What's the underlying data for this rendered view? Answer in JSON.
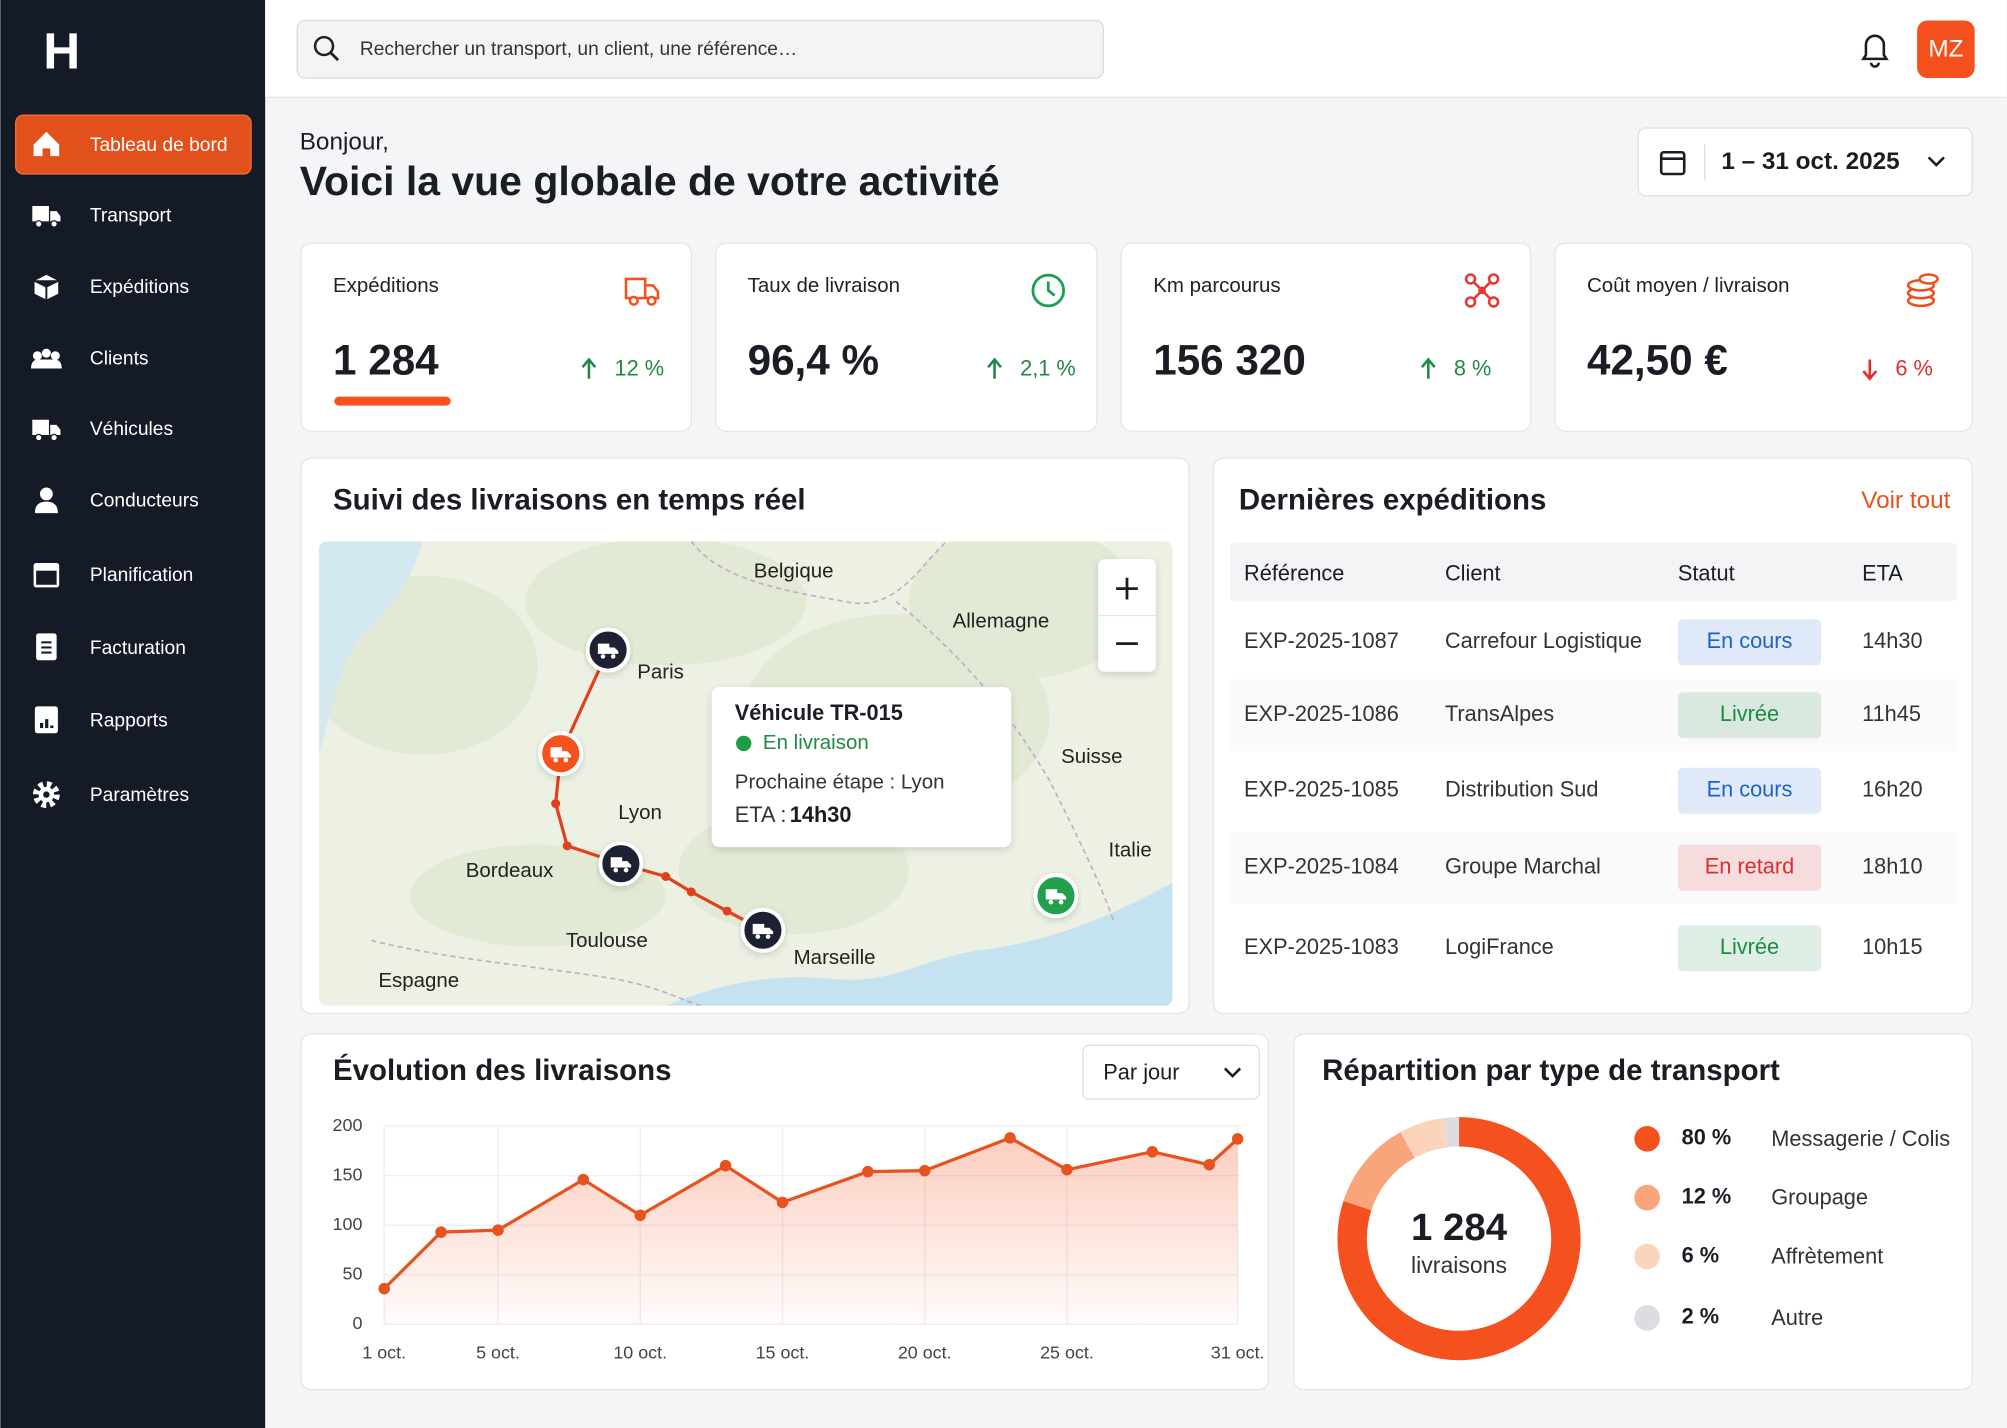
{
  "app": {
    "logo": "H",
    "nav": [
      "Tableau de bord",
      "Transport",
      "Expéditions",
      "Clients",
      "Véhicules",
      "Conducteurs",
      "Planification",
      "Facturation",
      "Rapports",
      "Paramètres"
    ],
    "active_nav": 0
  },
  "search": {
    "placeholder": "Rechercher un transport, un client, une référence…"
  },
  "user": {
    "initials": "MZ"
  },
  "greeting": "Bonjour,",
  "headline": "Voici la vue globale de votre activité",
  "date_range": "1 – 31 oct. 2025",
  "kpis": [
    {
      "label": "Expéditions",
      "value": "1 284",
      "change": "12 %",
      "trend": "up",
      "icon": "truck",
      "icon_color": "#f4511e",
      "accent_underline": true
    },
    {
      "label": "Taux de livraison",
      "value": "96,4 %",
      "change": "2,1 %",
      "trend": "up",
      "icon": "clock",
      "icon_color": "#1f9d55"
    },
    {
      "label": "Km parcourus",
      "value": "156 320",
      "change": "8 %",
      "trend": "up",
      "icon": "network",
      "icon_color": "#e53935"
    },
    {
      "label": "Coût moyen / livraison",
      "value": "42,50 €",
      "change": "6 %",
      "trend": "down",
      "icon": "coins",
      "icon_color": "#e8521e"
    }
  ],
  "map": {
    "title": "Suivi des livraisons en temps réel",
    "places": [
      "Belgique",
      "Allemagne",
      "Paris",
      "Suisse",
      "Lyon",
      "Italie",
      "Bordeaux",
      "Toulouse",
      "Marseille",
      "Espagne"
    ],
    "tooltip": {
      "vehicle": "Véhicule TR-015",
      "status": "En livraison",
      "next_stop": "Prochaine étape : Lyon",
      "eta_label": "ETA :",
      "eta": "14h30"
    }
  },
  "shipments": {
    "title": "Dernières expéditions",
    "link": "Voir tout",
    "columns": [
      "Référence",
      "Client",
      "Statut",
      "ETA"
    ],
    "rows": [
      {
        "reference": "EXP-2025-1087",
        "client": "Carrefour Logistique",
        "status": "En cours",
        "status_color": "#1d63c9",
        "eta": "14h30"
      },
      {
        "reference": "EXP-2025-1086",
        "client": "TransAlpes",
        "status": "Livrée",
        "status_color": "#1f8a45",
        "eta": "11h45"
      },
      {
        "reference": "EXP-2025-1085",
        "client": "Distribution Sud",
        "status": "En cours",
        "status_color": "#1d63c9",
        "eta": "16h20"
      },
      {
        "reference": "EXP-2025-1084",
        "client": "Groupe Marchal",
        "status": "En retard",
        "status_color": "#e02d2d",
        "eta": "18h10"
      },
      {
        "reference": "EXP-2025-1083",
        "client": "LogiFrance",
        "status": "Livrée",
        "status_color": "#1f8a45",
        "eta": "10h15"
      }
    ]
  },
  "chart_data": [
    {
      "type": "line",
      "title": "Évolution des livraisons",
      "period": "Par jour",
      "color": "#e8521e",
      "x": [
        1,
        3,
        5,
        8,
        10,
        13,
        15,
        18,
        20,
        23,
        25,
        28,
        30,
        31
      ],
      "values": [
        36,
        93,
        95,
        146,
        110,
        160,
        123,
        154,
        155,
        188,
        156,
        174,
        161,
        187
      ],
      "xlim": [
        1,
        31
      ],
      "xticks": [
        {
          "value": 1,
          "label": "1 oct."
        },
        {
          "value": 5,
          "label": "5 oct."
        },
        {
          "value": 10,
          "label": "10 oct."
        },
        {
          "value": 15,
          "label": "15 oct."
        },
        {
          "value": 20,
          "label": "20 oct."
        },
        {
          "value": 25,
          "label": "25 oct."
        },
        {
          "value": 31,
          "label": "31 oct."
        }
      ],
      "ylim": [
        0,
        200
      ],
      "yticks": [
        0,
        50,
        100,
        150,
        200
      ],
      "grid": true
    },
    {
      "type": "donut",
      "title": "Répartition par type de transport",
      "center_value": "1 284",
      "center_label": "livraisons",
      "categories": [
        "Messagerie / Colis",
        "Groupage",
        "Affrètement",
        "Autre"
      ],
      "values": [
        80,
        12,
        6,
        2
      ],
      "value_labels": [
        "80 %",
        "12 %",
        "6 %",
        "2 %"
      ],
      "colors": [
        "#f4511e",
        "#f9a47a",
        "#fcd3bb",
        "#dcdde1"
      ]
    }
  ]
}
